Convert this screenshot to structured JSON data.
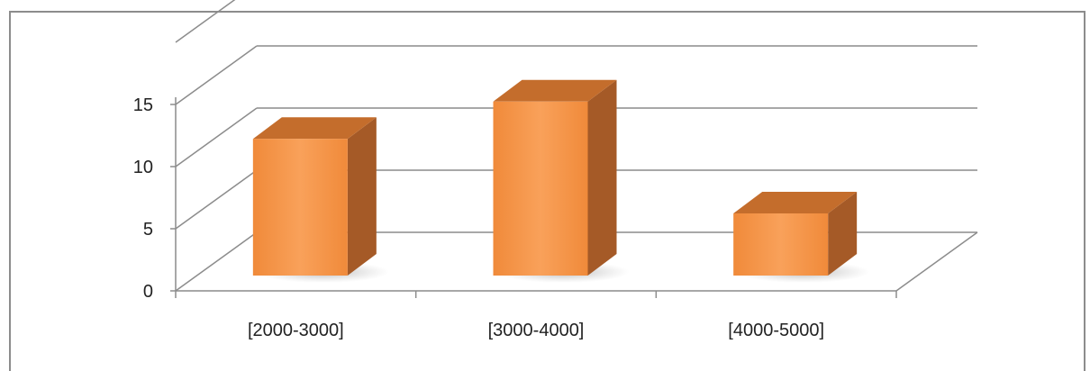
{
  "chart_data": {
    "type": "bar",
    "style": "3d-column",
    "categories": [
      "[2000-3000]",
      "[3000-4000]",
      "[4000-5000]"
    ],
    "values": [
      11,
      14,
      5
    ],
    "ylim": [
      0,
      20
    ],
    "yticks": [
      "0",
      "5",
      "10",
      "15"
    ],
    "ytick_values": [
      0,
      5,
      10,
      15
    ],
    "grid": true,
    "colors": {
      "front": "#f7994a",
      "side": "#a55a27",
      "top": "#c46d2c",
      "grid": "#8c8c8c"
    }
  }
}
